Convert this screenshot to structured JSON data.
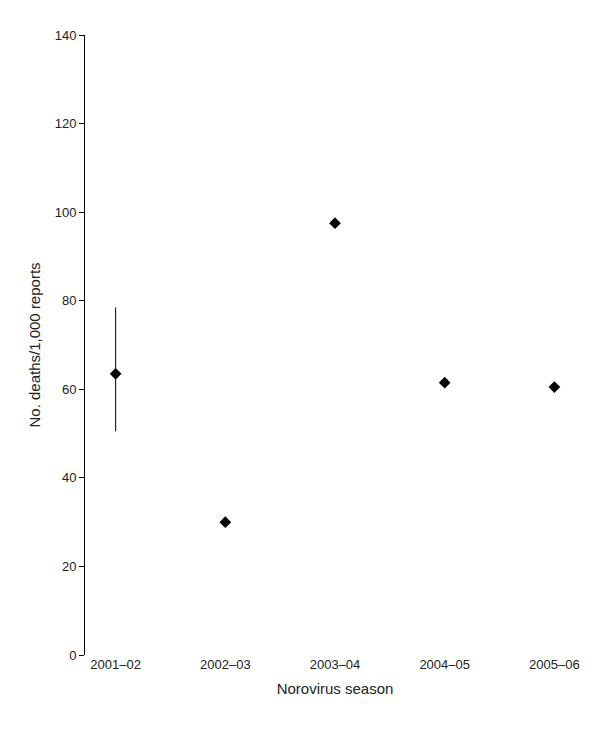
{
  "chart_data": {
    "type": "scatter",
    "x_label": "Norovirus season",
    "y_label": "No. deaths/1,000 reports",
    "categories": [
      "2001–02",
      "2002–03",
      "2003–04",
      "2004–05",
      "2005–06"
    ],
    "values": [
      63.5,
      30,
      97.5,
      61.5,
      60.5
    ],
    "error_low": [
      50.5,
      null,
      null,
      null,
      null
    ],
    "error_high": [
      78.5,
      null,
      null,
      null,
      null
    ],
    "color": "#000000",
    "marker": "diamond",
    "ylim": [
      0,
      140
    ],
    "yticks": [
      0,
      20,
      40,
      60,
      80,
      100,
      120,
      140
    ],
    "grid": false
  }
}
